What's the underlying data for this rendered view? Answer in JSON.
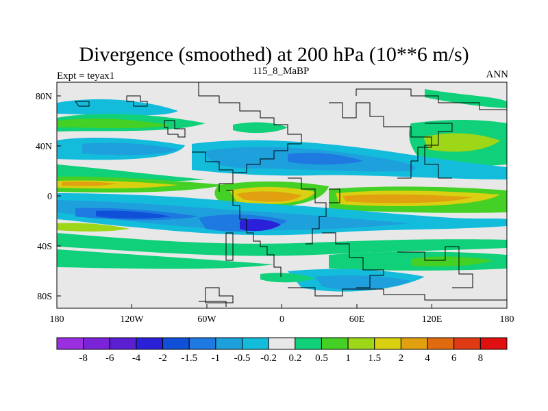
{
  "title": "Divergence (smoothed) at 200 hPa (10**6 m/s)",
  "left_label": "Expt = teyax1",
  "center_label": "115_8_MaBP",
  "right_label": "ANN",
  "axes": {
    "lon_ticks": [
      "180",
      "120W",
      "60W",
      "0",
      "60E",
      "120E",
      "180"
    ],
    "lat_ticks": [
      "80N",
      "40N",
      "0",
      "40S",
      "80S"
    ]
  },
  "colorbar": {
    "labels": [
      "-8",
      "-6",
      "-4",
      "-2",
      "-1.5",
      "-1",
      "-0.5",
      "-0.2",
      "0.2",
      "0.5",
      "1",
      "1.5",
      "2",
      "4",
      "6",
      "8"
    ],
    "colors": [
      "#9a2fe0",
      "#7a23d8",
      "#5a1fd0",
      "#2a20d8",
      "#1050d8",
      "#1e7ae0",
      "#1ea0dc",
      "#14bcdc",
      "#e8e8e8",
      "#10d07a",
      "#44d024",
      "#9ed618",
      "#d8d010",
      "#e0a010",
      "#e06a10",
      "#e03a14",
      "#e01010"
    ]
  }
}
